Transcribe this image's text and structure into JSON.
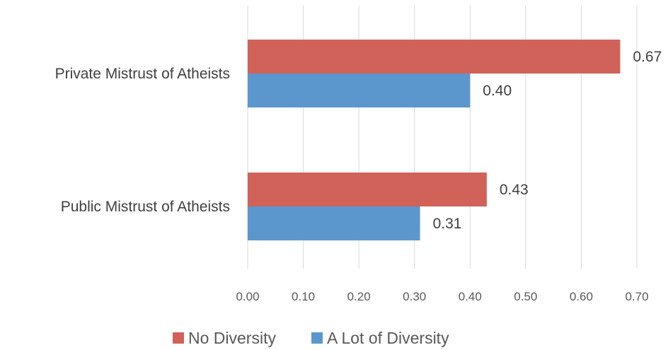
{
  "chart_data": {
    "type": "bar",
    "orientation": "horizontal",
    "categories": [
      "Private Mistrust of Atheists",
      "Public Mistrust of Atheists"
    ],
    "series": [
      {
        "name": "No Diversity",
        "color": "#d0625a",
        "values": [
          0.67,
          0.43
        ],
        "labels": [
          "0.67",
          "0.43"
        ]
      },
      {
        "name": "A Lot of Diversity",
        "color": "#5b96cc",
        "values": [
          0.4,
          0.31
        ],
        "labels": [
          "0.40",
          "0.31"
        ]
      }
    ],
    "xlim": [
      0,
      0.7
    ],
    "xticks": [
      "0.00",
      "0.10",
      "0.20",
      "0.30",
      "0.40",
      "0.50",
      "0.60",
      "0.70"
    ],
    "grid": true,
    "legend_position": "bottom",
    "title": "",
    "xlabel": "",
    "ylabel": ""
  }
}
